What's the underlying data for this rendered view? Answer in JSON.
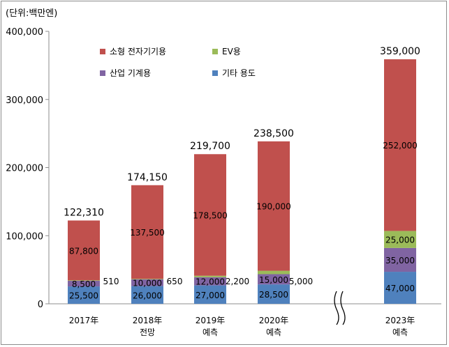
{
  "chart_data": {
    "type": "bar",
    "stacked": true,
    "unit_label": "(단위:백만엔)",
    "ylim": [
      0,
      400000
    ],
    "yticks": [
      "0",
      "100,000",
      "200,000",
      "300,000",
      "400,000"
    ],
    "ytick_values": [
      0,
      100000,
      200000,
      300000,
      400000
    ],
    "categories": [
      {
        "line1": "2017年",
        "line2": ""
      },
      {
        "line1": "2018年",
        "line2": "전망"
      },
      {
        "line1": "2019年",
        "line2": "예측"
      },
      {
        "line1": "2020年",
        "line2": "예측"
      },
      {
        "line1": "2023年",
        "line2": "예측"
      }
    ],
    "axis_break": "between 2020年 예측 and 2023年 예측",
    "totals": [
      "122,310",
      "174,150",
      "219,700",
      "238,500",
      "359,000"
    ],
    "series": [
      {
        "name": "기타 용도",
        "color": "#4f81bd",
        "values": [
          25500,
          26000,
          27000,
          28500,
          47000
        ],
        "labels": [
          "25,500",
          "26,000",
          "27,000",
          "28,500",
          "47,000"
        ]
      },
      {
        "name": "산업 기계용",
        "color": "#8064a2",
        "values": [
          8500,
          10000,
          12000,
          15000,
          35000
        ],
        "labels": [
          "8,500",
          "10,000",
          "12,000",
          "15,000",
          "35,000"
        ]
      },
      {
        "name": "EV용",
        "color": "#9bbb59",
        "values": [
          510,
          650,
          2200,
          5000,
          25000
        ],
        "labels": [
          "510",
          "650",
          "2,200",
          "5,000",
          "25,000"
        ]
      },
      {
        "name": "소형 전자기기용",
        "color": "#c0504d",
        "values": [
          87800,
          137500,
          178500,
          190000,
          252000
        ],
        "labels": [
          "87,800",
          "137,500",
          "178,500",
          "190,000",
          "252,000"
        ]
      }
    ],
    "legend": {
      "placement": "top-left",
      "items": [
        {
          "name": "소형 전자기기용",
          "color": "#c0504d"
        },
        {
          "name": "EV용",
          "color": "#9bbb59"
        },
        {
          "name": "산업 기계용",
          "color": "#8064a2"
        },
        {
          "name": "기타 용도",
          "color": "#4f81bd"
        }
      ]
    },
    "grid": false
  }
}
